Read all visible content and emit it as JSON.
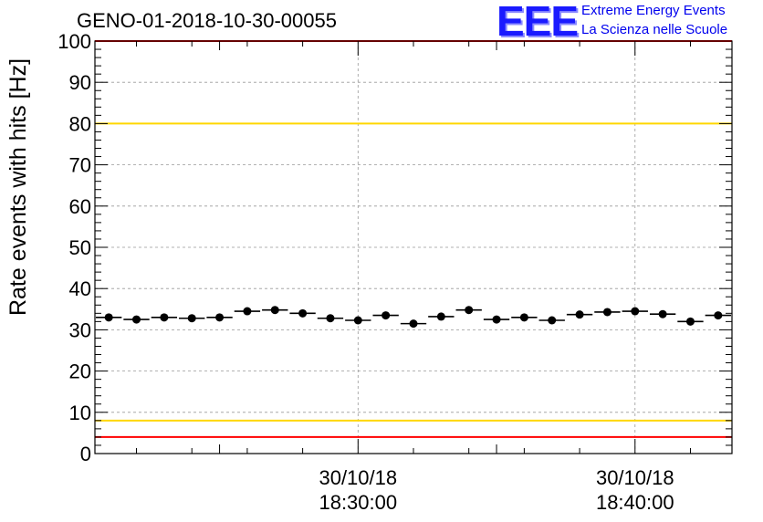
{
  "header": {
    "title": "GENO-01-2018-10-30-00055",
    "logo_text": "EEE",
    "logo_line1": "Extreme Energy Events",
    "logo_line2": "La Scienza nelle Scuole"
  },
  "colors": {
    "red_limit": "#ff0000",
    "yellow_limit": "#ffd700",
    "marker": "#000000",
    "grid": "#999999",
    "logo": "#1a1aff"
  },
  "chart_data": {
    "type": "scatter",
    "title": "GENO-01-2018-10-30-00055",
    "ylabel": "Rate events with hits [Hz]",
    "xlabel": "",
    "ylim": [
      0,
      100
    ],
    "yticks": [
      0,
      10,
      20,
      30,
      40,
      50,
      60,
      70,
      80,
      90,
      100
    ],
    "x_start": "18:20:30",
    "x_end": "18:43:30",
    "bin_width_minutes": 1,
    "x_tick_labels": [
      {
        "time": "18:30:00",
        "date": "30/10/18",
        "label": "18:30:00"
      },
      {
        "time": "18:40:00",
        "date": "30/10/18",
        "label": "18:40:00"
      }
    ],
    "grid": true,
    "reference_lines": [
      {
        "y": 100,
        "color": "red"
      },
      {
        "y": 80,
        "color": "yellow"
      },
      {
        "y": 8,
        "color": "yellow"
      },
      {
        "y": 4,
        "color": "red"
      }
    ],
    "x": [
      "18:21:00",
      "18:22:00",
      "18:23:00",
      "18:24:00",
      "18:25:00",
      "18:26:00",
      "18:27:00",
      "18:28:00",
      "18:29:00",
      "18:30:00",
      "18:31:00",
      "18:32:00",
      "18:33:00",
      "18:34:00",
      "18:35:00",
      "18:36:00",
      "18:37:00",
      "18:38:00",
      "18:39:00",
      "18:40:00",
      "18:41:00",
      "18:42:00",
      "18:43:00"
    ],
    "values": [
      33.0,
      32.5,
      33.0,
      32.8,
      33.0,
      34.5,
      34.8,
      34.0,
      32.8,
      32.3,
      33.5,
      31.5,
      33.2,
      34.8,
      32.5,
      33.0,
      32.3,
      33.7,
      34.3,
      34.5,
      33.8,
      32.0,
      33.5
    ]
  }
}
